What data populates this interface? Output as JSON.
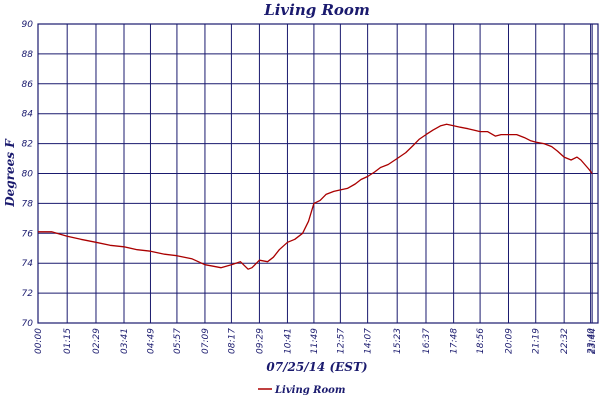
{
  "chart_data": {
    "type": "line",
    "title": "Living Room",
    "xlabel": "07/25/14 (EST)",
    "ylabel": "Degrees F",
    "ylim": [
      70,
      90
    ],
    "yticks": [
      70,
      72,
      74,
      76,
      78,
      80,
      82,
      84,
      86,
      88,
      90
    ],
    "xlim_minutes": [
      0,
      1439
    ],
    "xtick_labels": [
      "00:00",
      "01:15",
      "02:29",
      "03:41",
      "04:49",
      "05:57",
      "07:09",
      "08:17",
      "09:29",
      "10:41",
      "11:49",
      "12:57",
      "14:07",
      "15:23",
      "16:37",
      "17:48",
      "18:56",
      "20:09",
      "21:19",
      "22:32",
      "23:40",
      "23:44"
    ],
    "grid": true,
    "legend_position": "bottom-center",
    "colors": {
      "series": "#aa0000",
      "grid": "#1a1a6e",
      "text": "#1a1a6e"
    },
    "series": [
      {
        "name": "Living Room",
        "x": [
          "00:00",
          "00:35",
          "01:15",
          "01:50",
          "02:29",
          "03:05",
          "03:41",
          "04:15",
          "04:49",
          "05:25",
          "05:57",
          "06:35",
          "07:09",
          "07:30",
          "07:50",
          "08:17",
          "08:40",
          "09:00",
          "09:10",
          "09:29",
          "09:50",
          "10:05",
          "10:20",
          "10:41",
          "11:00",
          "11:20",
          "11:35",
          "11:49",
          "12:05",
          "12:20",
          "12:40",
          "12:57",
          "13:15",
          "13:35",
          "13:50",
          "14:07",
          "14:25",
          "14:40",
          "15:00",
          "15:23",
          "15:45",
          "16:05",
          "16:20",
          "16:37",
          "16:55",
          "17:15",
          "17:30",
          "17:48",
          "18:05",
          "18:25",
          "18:40",
          "18:56",
          "19:15",
          "19:35",
          "19:50",
          "20:09",
          "20:30",
          "20:50",
          "21:05",
          "21:19",
          "21:40",
          "22:00",
          "22:15",
          "22:32",
          "22:50",
          "23:05",
          "23:15",
          "23:25",
          "23:35",
          "23:44"
        ],
        "values": [
          76.1,
          76.1,
          75.8,
          75.6,
          75.4,
          75.2,
          75.1,
          74.9,
          74.8,
          74.6,
          74.5,
          74.3,
          73.9,
          73.8,
          73.7,
          73.9,
          74.1,
          73.6,
          73.7,
          74.2,
          74.1,
          74.4,
          74.9,
          75.4,
          75.6,
          76.0,
          76.8,
          78.0,
          78.2,
          78.6,
          78.8,
          78.9,
          79.0,
          79.3,
          79.6,
          79.8,
          80.1,
          80.4,
          80.6,
          81.0,
          81.4,
          81.9,
          82.3,
          82.6,
          82.9,
          83.2,
          83.3,
          83.2,
          83.1,
          83.0,
          82.9,
          82.8,
          82.8,
          82.5,
          82.6,
          82.6,
          82.6,
          82.4,
          82.2,
          82.1,
          82.0,
          81.8,
          81.5,
          81.1,
          80.9,
          81.1,
          80.9,
          80.6,
          80.3,
          80.0
        ]
      }
    ]
  }
}
